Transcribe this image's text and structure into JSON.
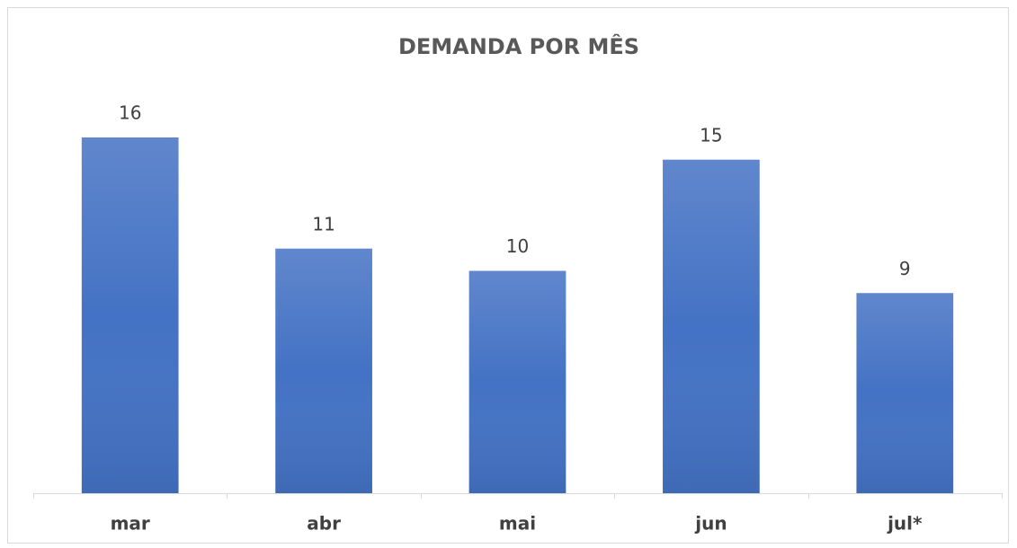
{
  "chart_data": {
    "type": "bar",
    "title": "DEMANDA POR MÊS",
    "categories": [
      "mar",
      "abr",
      "mai",
      "jun",
      "jul*"
    ],
    "values": [
      16,
      11,
      10,
      15,
      9
    ],
    "color": "#4472c4",
    "ylim": [
      0,
      16
    ]
  }
}
